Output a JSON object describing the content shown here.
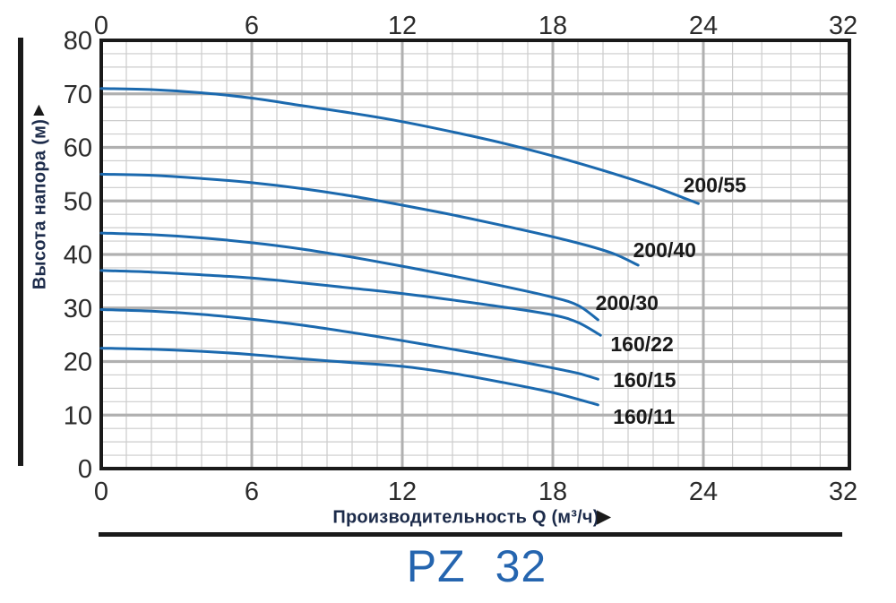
{
  "page_title": "PZ 32",
  "icons": {
    "y_axis_arrow": "▲",
    "x_axis_arrow": "▶"
  },
  "colors": {
    "curve": "#1b69ae",
    "grid_major": "#b0b0b0",
    "grid_minor": "#cccccc",
    "axis_border": "#1a1a1a",
    "tick_label": "#2b2b2b",
    "series_label": "#1a1a1a",
    "axis_title": "#1c2b4a",
    "model_title": "#2565af"
  },
  "chart_data": {
    "type": "line",
    "title": "PZ 32",
    "xlabel": "Производительность Q (м³/ч)",
    "ylabel": "Высота напора (м)",
    "xlim": [
      0,
      32
    ],
    "ylim": [
      0,
      80
    ],
    "x_ticks": [
      0,
      6,
      12,
      18,
      24,
      32
    ],
    "y_ticks": [
      0,
      10,
      20,
      30,
      40,
      50,
      60,
      70,
      80
    ],
    "x_minor_step": 1,
    "y_minor_step": 2.5,
    "grid": "major+minor",
    "legend_position": "labels at end of each curve",
    "series": [
      {
        "name": "200/55",
        "label_at": [
          23.2,
          53.0
        ],
        "points": [
          [
            0,
            71
          ],
          [
            2,
            70.8
          ],
          [
            4,
            70.2
          ],
          [
            6,
            69.2
          ],
          [
            8,
            67.8
          ],
          [
            10,
            66.4
          ],
          [
            12,
            64.8
          ],
          [
            14,
            62.9
          ],
          [
            16,
            60.8
          ],
          [
            18,
            58.4
          ],
          [
            20,
            55.7
          ],
          [
            22,
            52.7
          ],
          [
            23.8,
            49.5
          ]
        ]
      },
      {
        "name": "200/40",
        "label_at": [
          21.2,
          40.8
        ],
        "points": [
          [
            0,
            55
          ],
          [
            2,
            54.8
          ],
          [
            4,
            54.2
          ],
          [
            6,
            53.4
          ],
          [
            8,
            52.3
          ],
          [
            10,
            50.9
          ],
          [
            12,
            49.2
          ],
          [
            14,
            47.4
          ],
          [
            16,
            45.4
          ],
          [
            18,
            43.3
          ],
          [
            19.5,
            41.5
          ],
          [
            20.5,
            40
          ],
          [
            21.4,
            38
          ]
        ]
      },
      {
        "name": "200/30",
        "label_at": [
          19.7,
          31.0
        ],
        "points": [
          [
            0,
            44
          ],
          [
            2,
            43.7
          ],
          [
            4,
            43.1
          ],
          [
            6,
            42.2
          ],
          [
            8,
            41
          ],
          [
            10,
            39.5
          ],
          [
            12,
            37.8
          ],
          [
            14,
            36
          ],
          [
            16,
            34.1
          ],
          [
            18,
            32
          ],
          [
            19,
            30.5
          ],
          [
            19.8,
            27.8
          ]
        ]
      },
      {
        "name": "160/22",
        "label_at": [
          20.3,
          23.3
        ],
        "points": [
          [
            0,
            37
          ],
          [
            2,
            36.7
          ],
          [
            4,
            36.2
          ],
          [
            6,
            35.6
          ],
          [
            8,
            34.7
          ],
          [
            10,
            33.7
          ],
          [
            12,
            32.7
          ],
          [
            14,
            31.5
          ],
          [
            16,
            30.2
          ],
          [
            18,
            28.7
          ],
          [
            19,
            27.3
          ],
          [
            19.9,
            24.9
          ]
        ]
      },
      {
        "name": "160/15",
        "label_at": [
          20.4,
          16.6
        ],
        "points": [
          [
            0,
            29.7
          ],
          [
            2,
            29.4
          ],
          [
            4,
            28.8
          ],
          [
            6,
            27.9
          ],
          [
            8,
            26.8
          ],
          [
            10,
            25.4
          ],
          [
            12,
            23.9
          ],
          [
            14,
            22.3
          ],
          [
            16,
            20.6
          ],
          [
            18,
            18.8
          ],
          [
            19,
            17.8
          ],
          [
            19.8,
            16.7
          ]
        ]
      },
      {
        "name": "160/11",
        "label_at": [
          20.4,
          9.7
        ],
        "points": [
          [
            0,
            22.5
          ],
          [
            2,
            22.3
          ],
          [
            4,
            21.9
          ],
          [
            6,
            21.3
          ],
          [
            8,
            20.5
          ],
          [
            10,
            19.8
          ],
          [
            12,
            19.1
          ],
          [
            14,
            17.8
          ],
          [
            16,
            16.1
          ],
          [
            18,
            14.2
          ],
          [
            19.8,
            11.9
          ]
        ]
      }
    ]
  }
}
